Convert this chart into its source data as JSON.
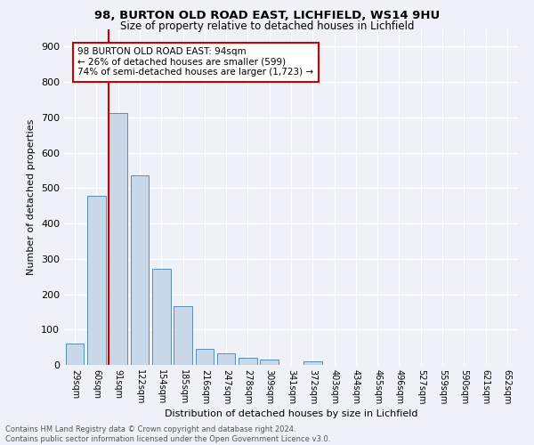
{
  "title1": "98, BURTON OLD ROAD EAST, LICHFIELD, WS14 9HU",
  "title2": "Size of property relative to detached houses in Lichfield",
  "xlabel": "Distribution of detached houses by size in Lichfield",
  "ylabel": "Number of detached properties",
  "bar_labels": [
    "29sqm",
    "60sqm",
    "91sqm",
    "122sqm",
    "154sqm",
    "185sqm",
    "216sqm",
    "247sqm",
    "278sqm",
    "309sqm",
    "341sqm",
    "372sqm",
    "403sqm",
    "434sqm",
    "465sqm",
    "496sqm",
    "527sqm",
    "559sqm",
    "590sqm",
    "621sqm",
    "652sqm"
  ],
  "bar_values": [
    60,
    478,
    713,
    537,
    272,
    165,
    46,
    32,
    20,
    15,
    0,
    10,
    0,
    0,
    0,
    0,
    0,
    0,
    0,
    0,
    0
  ],
  "annotation_title": "98 BURTON OLD ROAD EAST: 94sqm",
  "annotation_line1": "← 26% of detached houses are smaller (599)",
  "annotation_line2": "74% of semi-detached houses are larger (1,723) →",
  "bar_color": "#c8d8e8",
  "bar_edge_color": "#5b8db8",
  "marker_line_color": "#cc0000",
  "annotation_box_color": "#ffffff",
  "annotation_box_edge": "#cc0000",
  "background_color": "#eef2f8",
  "grid_color": "#ffffff",
  "footer_text": "Contains HM Land Registry data © Crown copyright and database right 2024.\nContains public sector information licensed under the Open Government Licence v3.0.",
  "ylim": [
    0,
    950
  ],
  "yticks": [
    0,
    100,
    200,
    300,
    400,
    500,
    600,
    700,
    800,
    900
  ],
  "marker_bar_index": 2,
  "bar_width": 0.85
}
